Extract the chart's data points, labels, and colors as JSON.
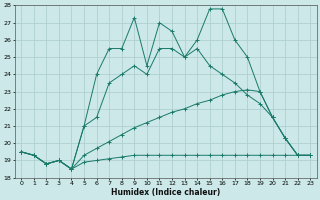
{
  "xlabel": "Humidex (Indice chaleur)",
  "bg_color": "#cce8e8",
  "grid_color": "#b0d0d0",
  "line_color": "#1a7a6a",
  "xlim": [
    -0.5,
    23.5
  ],
  "ylim": [
    18,
    28
  ],
  "xticks": [
    0,
    1,
    2,
    3,
    4,
    5,
    6,
    7,
    8,
    9,
    10,
    11,
    12,
    13,
    14,
    15,
    16,
    17,
    18,
    19,
    20,
    21,
    22,
    23
  ],
  "yticks": [
    18,
    19,
    20,
    21,
    22,
    23,
    24,
    25,
    26,
    27,
    28
  ],
  "lines": [
    {
      "x": [
        0,
        1,
        2,
        3,
        4,
        5,
        6,
        7,
        8,
        9,
        10,
        11,
        12,
        13,
        14,
        15,
        16,
        17,
        18,
        19,
        20,
        21,
        22,
        23
      ],
      "y": [
        19.5,
        19.3,
        18.8,
        19.0,
        18.5,
        21.0,
        24.0,
        25.5,
        25.5,
        27.3,
        24.5,
        27.0,
        26.5,
        25.0,
        26.0,
        27.8,
        27.8,
        26.0,
        25.0,
        23.0,
        21.5,
        20.3,
        19.3,
        19.3
      ]
    },
    {
      "x": [
        0,
        1,
        2,
        3,
        4,
        5,
        6,
        7,
        8,
        9,
        10,
        11,
        12,
        13,
        14,
        15,
        16,
        17,
        18,
        19,
        20,
        21,
        22,
        23
      ],
      "y": [
        19.5,
        19.3,
        18.8,
        19.0,
        18.5,
        21.0,
        21.5,
        23.5,
        24.0,
        24.5,
        24.0,
        25.5,
        25.5,
        25.0,
        25.5,
        24.5,
        24.0,
        23.5,
        22.8,
        22.3,
        21.5,
        20.3,
        19.3,
        19.3
      ]
    },
    {
      "x": [
        0,
        1,
        2,
        3,
        4,
        5,
        6,
        7,
        8,
        9,
        10,
        11,
        12,
        13,
        14,
        15,
        16,
        17,
        18,
        19,
        20,
        21,
        22,
        23
      ],
      "y": [
        19.5,
        19.3,
        18.8,
        19.0,
        18.5,
        19.3,
        19.7,
        20.1,
        20.5,
        20.9,
        21.2,
        21.5,
        21.8,
        22.0,
        22.3,
        22.5,
        22.8,
        23.0,
        23.1,
        23.0,
        21.5,
        20.3,
        19.3,
        19.3
      ]
    },
    {
      "x": [
        0,
        1,
        2,
        3,
        4,
        5,
        6,
        7,
        8,
        9,
        10,
        11,
        12,
        13,
        14,
        15,
        16,
        17,
        18,
        19,
        20,
        21,
        22,
        23
      ],
      "y": [
        19.5,
        19.3,
        18.8,
        19.0,
        18.5,
        18.9,
        19.0,
        19.1,
        19.2,
        19.3,
        19.3,
        19.3,
        19.3,
        19.3,
        19.3,
        19.3,
        19.3,
        19.3,
        19.3,
        19.3,
        19.3,
        19.3,
        19.3,
        19.3
      ]
    }
  ]
}
